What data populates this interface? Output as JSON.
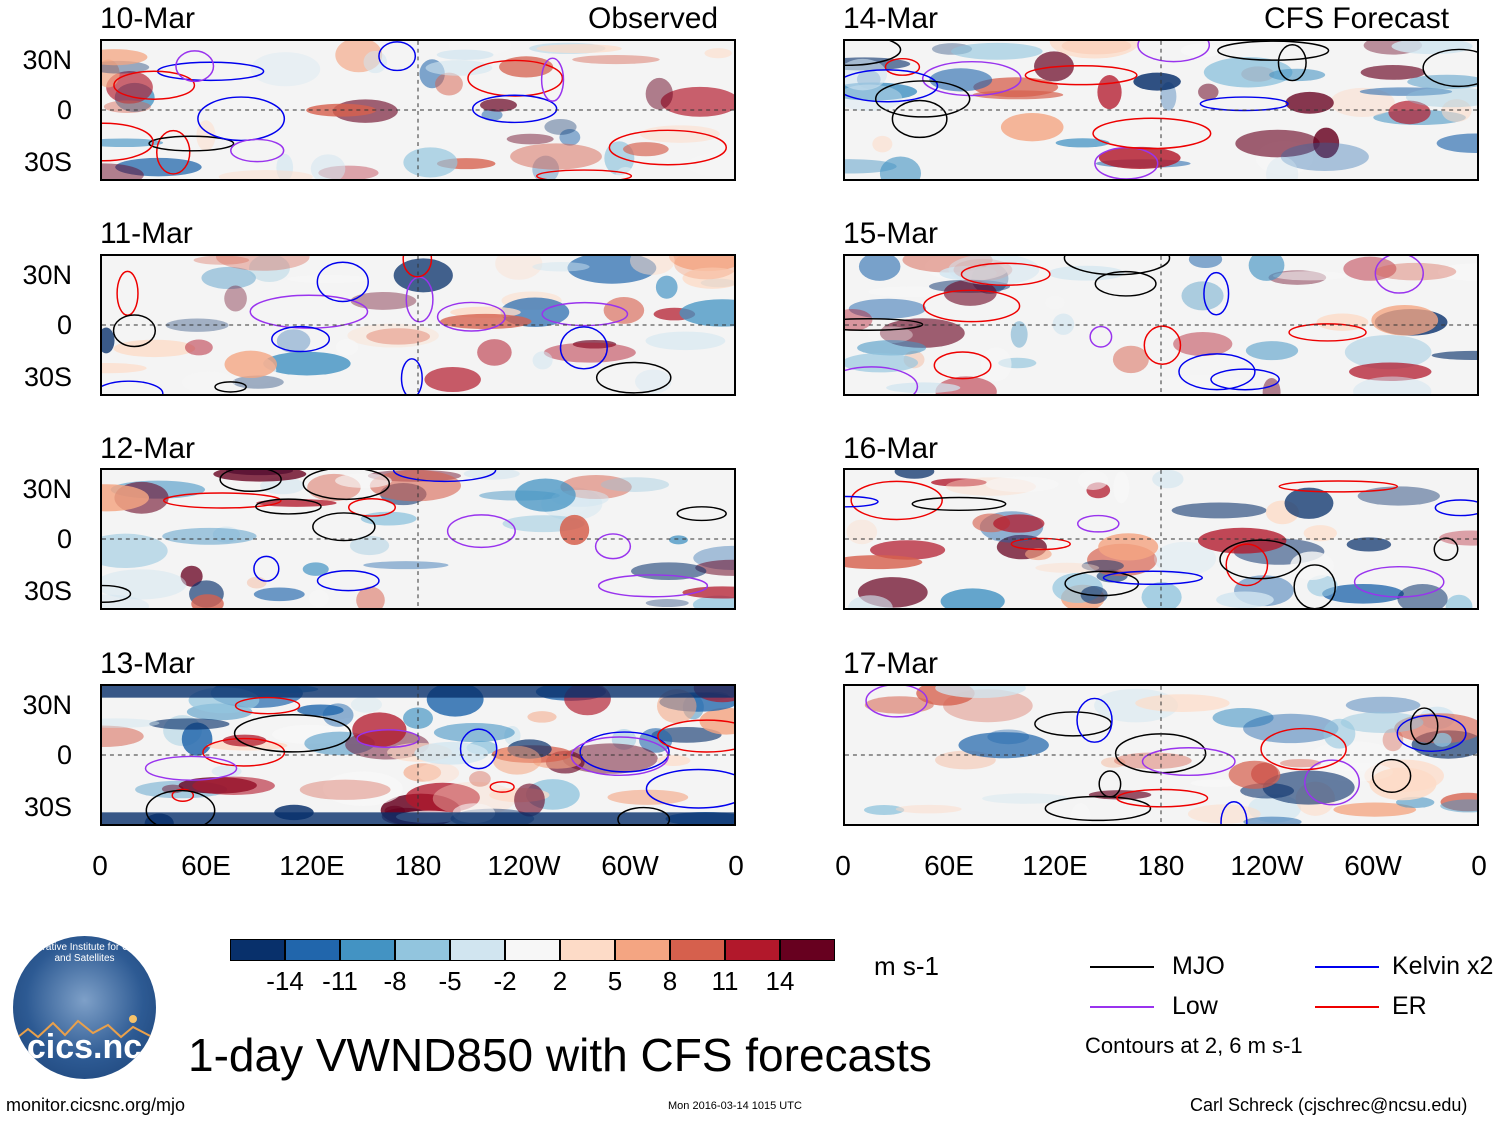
{
  "title": "1-day VWND850 with CFS forecasts",
  "left_column_label": "Observed",
  "right_column_label": "CFS Forecast",
  "panels_left": [
    {
      "date": "10-Mar"
    },
    {
      "date": "11-Mar"
    },
    {
      "date": "12-Mar"
    },
    {
      "date": "13-Mar"
    }
  ],
  "panels_right": [
    {
      "date": "14-Mar"
    },
    {
      "date": "15-Mar"
    },
    {
      "date": "16-Mar"
    },
    {
      "date": "17-Mar"
    }
  ],
  "lat_labels": [
    "30N",
    "0",
    "30S"
  ],
  "lon_labels": [
    "0",
    "60E",
    "120E",
    "180",
    "120W",
    "60W",
    "0"
  ],
  "colorbar": {
    "unit": "m s-1",
    "labels": [
      "-14",
      "-11",
      "-8",
      "-5",
      "-2",
      "2",
      "5",
      "8",
      "11",
      "14"
    ],
    "colors": [
      "#08306b",
      "#2166ac",
      "#4393c3",
      "#92c5de",
      "#d1e5f0",
      "#f7f7f7",
      "#fddbc7",
      "#f4a582",
      "#d6604d",
      "#b2182b",
      "#67001f"
    ]
  },
  "legend": {
    "items": [
      {
        "label": "MJO",
        "color": "#000000"
      },
      {
        "label": "Kelvin x2",
        "color": "#0000ee"
      },
      {
        "label": "Low",
        "color": "#9933ee"
      },
      {
        "label": "ER",
        "color": "#ee0000"
      }
    ],
    "note": "Contours at 2, 6 m s-1"
  },
  "logo": {
    "text": "cics.nc",
    "arc_text": "Cooperative Institute for Climate and Satellites"
  },
  "footer": {
    "url": "monitor.cicsnc.org/mjo",
    "timestamp": "Mon 2016-03-14 1015 UTC",
    "credit": "Carl Schreck (cjschrec@ncsu.edu)"
  }
}
